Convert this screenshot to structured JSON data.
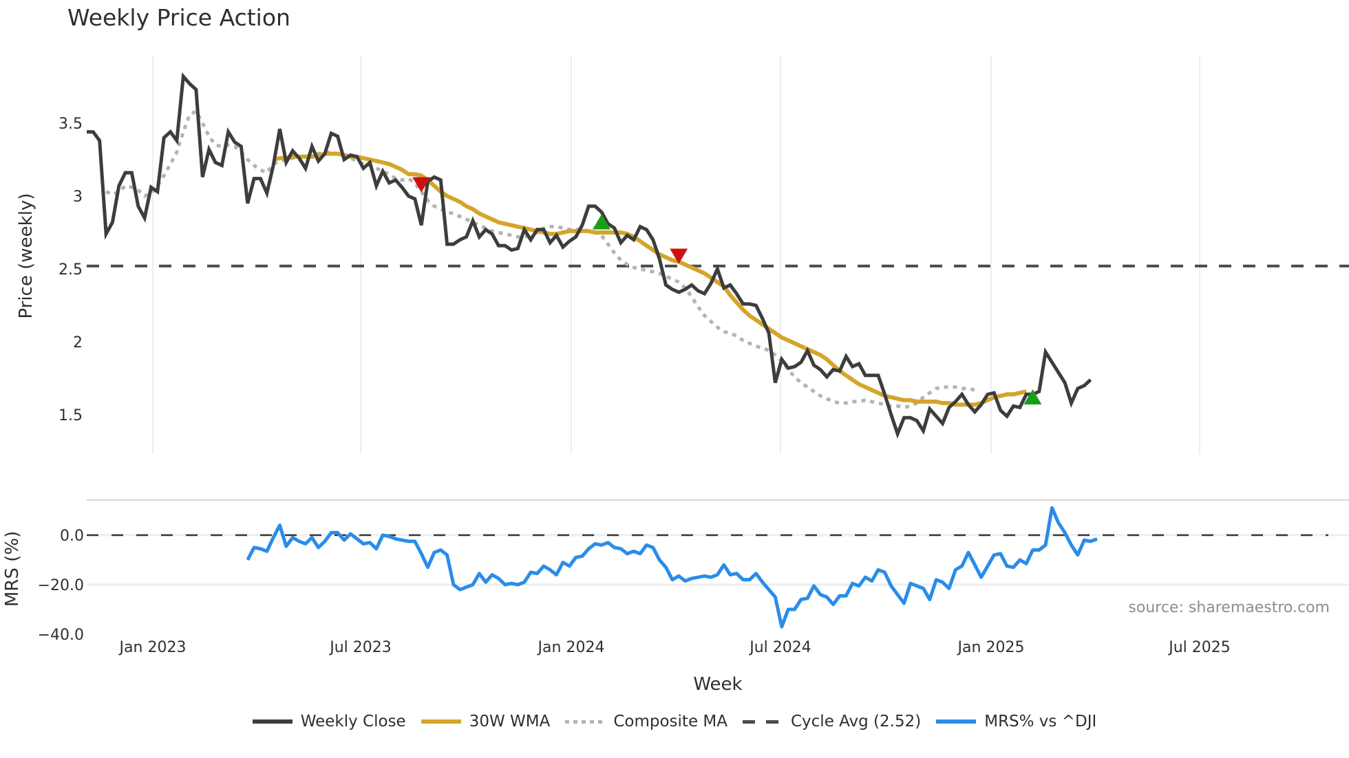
{
  "title": "Weekly Price Action",
  "source_note": "source: sharemaestro.com",
  "axes": {
    "x_title": "Week",
    "x_ticks": [
      "Jan 2023",
      "Jul 2023",
      "Jan 2024",
      "Jul 2024",
      "Jan 2025",
      "Jul 2025"
    ],
    "price_title": "Price (weekly)",
    "price_ticks": [
      "3.5",
      "3",
      "2.5",
      "2",
      "1.5"
    ],
    "mrs_title": "MRS (%)",
    "mrs_ticks": [
      "0.0",
      "−20.0",
      "−40.0"
    ]
  },
  "legend": [
    {
      "label": "Weekly Close",
      "color": "#3d3d3d",
      "style": "solid"
    },
    {
      "label": "30W WMA",
      "color": "#d4a52a",
      "style": "solid"
    },
    {
      "label": "Composite MA",
      "color": "#b4b4b4",
      "style": "dotted"
    },
    {
      "label": "Cycle Avg (2.52)",
      "color": "#4a4a4a",
      "style": "dashed"
    },
    {
      "label": "MRS% vs ^DJI",
      "color": "#2a8ce8",
      "style": "solid"
    }
  ],
  "colors": {
    "close": "#3d3d3d",
    "wma": "#d4a52a",
    "composite": "#b4b4b4",
    "cycle": "#4a4a4a",
    "mrs": "#2a8ce8",
    "sell_marker": "#cc1111",
    "buy_marker": "#1a9e1a",
    "grid": "#eceef3"
  },
  "chart_data": [
    {
      "type": "line",
      "title": "Weekly Price Action",
      "xlabel": "Week",
      "ylabel": "Price (weekly)",
      "x_start": "2022-10-07",
      "x_step_weeks": 1,
      "x_tick_labels": [
        "Jan 2023",
        "Jul 2023",
        "Jan 2024",
        "Jul 2024",
        "Jan 2025",
        "Jul 2025"
      ],
      "ylim": [
        1.22,
        3.96
      ],
      "y_ticks": [
        1.5,
        2,
        2.5,
        3,
        3.5
      ],
      "grid": true,
      "legend_position": "bottom",
      "series": [
        {
          "name": "Weekly Close",
          "values": [
            3.44,
            3.44,
            3.38,
            2.74,
            2.82,
            3.07,
            3.16,
            3.16,
            2.93,
            2.85,
            3.06,
            3.03,
            3.4,
            3.44,
            3.38,
            3.82,
            3.77,
            3.73,
            3.13,
            3.32,
            3.23,
            3.21,
            3.44,
            3.37,
            3.34,
            2.95,
            3.12,
            3.12,
            3.02,
            3.21,
            3.46,
            3.23,
            3.31,
            3.26,
            3.19,
            3.34,
            3.24,
            3.29,
            3.43,
            3.41,
            3.25,
            3.28,
            3.27,
            3.19,
            3.23,
            3.07,
            3.17,
            3.09,
            3.11,
            3.06,
            3.0,
            2.98,
            2.8,
            3.1,
            3.13,
            3.11,
            2.67,
            2.67,
            2.7,
            2.72,
            2.83,
            2.72,
            2.77,
            2.74,
            2.66,
            2.66,
            2.63,
            2.64,
            2.77,
            2.7,
            2.77,
            2.77,
            2.68,
            2.73,
            2.65,
            2.69,
            2.72,
            2.8,
            2.93,
            2.93,
            2.89,
            2.81,
            2.78,
            2.68,
            2.73,
            2.7,
            2.79,
            2.77,
            2.7,
            2.57,
            2.39,
            2.36,
            2.34,
            2.36,
            2.39,
            2.35,
            2.33,
            2.4,
            2.5,
            2.37,
            2.39,
            2.33,
            2.26,
            2.26,
            2.25,
            2.16,
            2.06,
            1.72,
            1.88,
            1.82,
            1.83,
            1.86,
            1.94,
            1.84,
            1.81,
            1.76,
            1.81,
            1.8,
            1.9,
            1.83,
            1.85,
            1.77,
            1.77,
            1.77,
            1.64,
            1.5,
            1.37,
            1.48,
            1.48,
            1.46,
            1.39,
            1.54,
            1.49,
            1.44,
            1.55,
            1.59,
            1.64,
            1.57,
            1.52,
            1.57,
            1.64,
            1.65,
            1.53,
            1.49,
            1.56,
            1.55,
            1.64,
            1.64,
            1.66,
            1.93,
            1.86,
            1.79,
            1.72,
            1.58,
            1.68,
            1.7,
            1.74
          ]
        },
        {
          "name": "30W WMA",
          "start_index": 29,
          "values": [
            3.25,
            3.26,
            3.26,
            3.27,
            3.27,
            3.27,
            3.27,
            3.28,
            3.29,
            3.29,
            3.29,
            3.28,
            3.27,
            3.27,
            3.26,
            3.25,
            3.24,
            3.23,
            3.22,
            3.2,
            3.18,
            3.15,
            3.15,
            3.14,
            3.11,
            3.07,
            3.03,
            3.0,
            2.98,
            2.96,
            2.93,
            2.91,
            2.88,
            2.86,
            2.84,
            2.82,
            2.81,
            2.8,
            2.79,
            2.78,
            2.77,
            2.76,
            2.75,
            2.74,
            2.74,
            2.75,
            2.76,
            2.76,
            2.76,
            2.76,
            2.75,
            2.75,
            2.75,
            2.75,
            2.75,
            2.74,
            2.72,
            2.69,
            2.66,
            2.63,
            2.6,
            2.58,
            2.56,
            2.55,
            2.53,
            2.51,
            2.49,
            2.47,
            2.44,
            2.41,
            2.38,
            2.32,
            2.27,
            2.22,
            2.18,
            2.15,
            2.12,
            2.09,
            2.06,
            2.03,
            2.01,
            1.99,
            1.97,
            1.95,
            1.93,
            1.91,
            1.88,
            1.84,
            1.8,
            1.77,
            1.74,
            1.71,
            1.69,
            1.67,
            1.65,
            1.63,
            1.62,
            1.61,
            1.6,
            1.6,
            1.59,
            1.59,
            1.59,
            1.59,
            1.58,
            1.58,
            1.57,
            1.57,
            1.57,
            1.57,
            1.58,
            1.6,
            1.62,
            1.63,
            1.64,
            1.64,
            1.65,
            1.66
          ]
        },
        {
          "name": "Composite MA",
          "start_index": 3,
          "values": [
            3.03,
            3.01,
            3.03,
            3.07,
            3.06,
            3.04,
            3.0,
            3.02,
            3.07,
            3.14,
            3.22,
            3.3,
            3.44,
            3.56,
            3.58,
            3.5,
            3.41,
            3.35,
            3.34,
            3.35,
            3.34,
            3.3,
            3.25,
            3.21,
            3.18,
            3.16,
            3.22,
            3.24,
            3.25,
            3.26,
            3.27,
            3.27,
            3.28,
            3.29,
            3.3,
            3.3,
            3.29,
            3.28,
            3.26,
            3.24,
            3.22,
            3.21,
            3.19,
            3.17,
            3.15,
            3.12,
            3.11,
            3.12,
            3.09,
            3.03,
            2.97,
            2.93,
            2.91,
            2.89,
            2.88,
            2.86,
            2.84,
            2.82,
            2.8,
            2.78,
            2.76,
            2.75,
            2.74,
            2.73,
            2.72,
            2.72,
            2.73,
            2.75,
            2.78,
            2.79,
            2.79,
            2.78,
            2.77,
            2.77,
            2.77,
            2.76,
            2.75,
            2.73,
            2.67,
            2.61,
            2.56,
            2.53,
            2.51,
            2.5,
            2.49,
            2.48,
            2.47,
            2.45,
            2.43,
            2.41,
            2.37,
            2.31,
            2.24,
            2.18,
            2.14,
            2.1,
            2.07,
            2.06,
            2.04,
            2.01,
            1.99,
            1.97,
            1.96,
            1.94,
            1.91,
            1.87,
            1.81,
            1.76,
            1.72,
            1.69,
            1.66,
            1.63,
            1.61,
            1.59,
            1.58,
            1.58,
            1.59,
            1.59,
            1.6,
            1.59,
            1.58,
            1.57,
            1.56,
            1.56,
            1.55,
            1.56,
            1.58,
            1.62,
            1.65,
            1.68,
            1.69,
            1.69,
            1.69,
            1.68,
            1.68,
            1.67
          ]
        },
        {
          "name": "Cycle Avg (2.52)",
          "values": [
            2.52
          ],
          "style": "dashed",
          "horizontal": true
        }
      ],
      "markers": [
        {
          "type": "sell",
          "shape": "triangle-down",
          "index": 52,
          "y": 3.08,
          "color": "#cc1111"
        },
        {
          "type": "buy",
          "shape": "triangle-up",
          "index": 80,
          "y": 2.82,
          "color": "#1a9e1a"
        },
        {
          "type": "sell",
          "shape": "triangle-down",
          "index": 92,
          "y": 2.59,
          "color": "#cc1111"
        },
        {
          "type": "buy",
          "shape": "triangle-up",
          "index": 147,
          "y": 1.62,
          "color": "#1a9e1a"
        }
      ]
    },
    {
      "type": "line",
      "title": "",
      "xlabel": "Week",
      "ylabel": "MRS (%)",
      "ylim": [
        -40,
        14
      ],
      "y_ticks": [
        -40,
        -20,
        0
      ],
      "reference_line": 0,
      "series": [
        {
          "name": "MRS% vs ^DJI",
          "start_index": 25,
          "values": [
            -10,
            -5,
            -5.5,
            -6.5,
            -1,
            4,
            -4.5,
            -1,
            -2.5,
            -3.5,
            -1,
            -5,
            -2.5,
            1,
            1,
            -2,
            0.5,
            -1.5,
            -3.5,
            -3,
            -5.5,
            0,
            -0.5,
            -1.5,
            -2,
            -2.5,
            -2.5,
            -7.5,
            -13,
            -7,
            -6,
            -8,
            -20,
            -22,
            -21,
            -20,
            -15.5,
            -19,
            -16,
            -17.5,
            -20,
            -19.5,
            -20,
            -19,
            -15,
            -15.5,
            -12.5,
            -14,
            -16,
            -11,
            -12.5,
            -9,
            -8.5,
            -5.5,
            -3.5,
            -4,
            -3,
            -5,
            -5.5,
            -7.5,
            -6.5,
            -7.5,
            -4,
            -5,
            -10,
            -13,
            -18,
            -16.5,
            -18.5,
            -17.5,
            -17,
            -16.5,
            -17,
            -16,
            -12,
            -16,
            -15.5,
            -18,
            -18,
            -15.5,
            -19,
            -22,
            -25,
            -37,
            -30,
            -30,
            -26,
            -25.5,
            -20.5,
            -24,
            -25,
            -28,
            -24.5,
            -24.5,
            -19.5,
            -20.5,
            -17,
            -18.5,
            -14,
            -15,
            -20.5,
            -24,
            -27.5,
            -19.5,
            -20.5,
            -21.5,
            -26,
            -18,
            -19,
            -21.5,
            -14,
            -12.5,
            -7,
            -12,
            -17,
            -12.5,
            -8,
            -7.5,
            -12.5,
            -13,
            -10,
            -11.5,
            -6,
            -6,
            -4,
            11,
            5,
            1,
            -4,
            -8,
            -2,
            -2.5,
            -1.5
          ]
        }
      ]
    }
  ]
}
